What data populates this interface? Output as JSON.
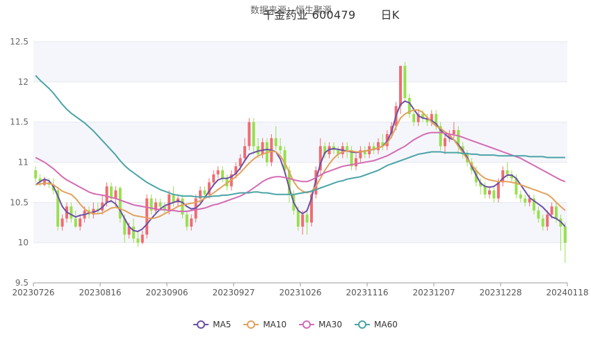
{
  "header": {
    "source_text": "数据来源：恒生聚源",
    "stock_title": "千金药业 600479",
    "period": "日K"
  },
  "colors": {
    "up": "#f06b72",
    "down": "#97e04e",
    "ma5": "#6b4fa5",
    "ma10": "#e3a05b",
    "ma30": "#d46ab3",
    "ma60": "#4aa3a6",
    "grid_band": "#f5f6fb"
  },
  "legend": [
    {
      "key": "ma5",
      "label": "MA5"
    },
    {
      "key": "ma10",
      "label": "MA10"
    },
    {
      "key": "ma30",
      "label": "MA30"
    },
    {
      "key": "ma60",
      "label": "MA60"
    }
  ],
  "chart_data": {
    "type": "candlestick",
    "ylim": [
      9.5,
      12.5
    ],
    "yticks": [
      9.5,
      10,
      10.5,
      11,
      11.5,
      12,
      12.5
    ],
    "xticks": [
      "20230726",
      "20230816",
      "20230906",
      "20230927",
      "20231026",
      "20231116",
      "20231207",
      "20231228",
      "20240118"
    ],
    "num_days": 120,
    "candles": [
      [
        10.9,
        10.8,
        10.95,
        10.75
      ],
      [
        10.8,
        10.75,
        10.85,
        10.7
      ],
      [
        10.72,
        10.78,
        10.82,
        10.7
      ],
      [
        10.75,
        10.72,
        10.8,
        10.68
      ],
      [
        10.72,
        10.65,
        10.8,
        10.6
      ],
      [
        10.65,
        10.2,
        10.7,
        10.15
      ],
      [
        10.2,
        10.3,
        10.35,
        10.15
      ],
      [
        10.3,
        10.45,
        10.5,
        10.25
      ],
      [
        10.45,
        10.3,
        10.5,
        10.25
      ],
      [
        10.3,
        10.2,
        10.4,
        10.18
      ],
      [
        10.2,
        10.3,
        10.35,
        10.15
      ],
      [
        10.3,
        10.4,
        10.45,
        10.25
      ],
      [
        10.4,
        10.35,
        10.45,
        10.3
      ],
      [
        10.35,
        10.42,
        10.5,
        10.3
      ],
      [
        10.42,
        10.4,
        10.5,
        10.35
      ],
      [
        10.4,
        10.5,
        10.6,
        10.35
      ],
      [
        10.5,
        10.7,
        10.75,
        10.45
      ],
      [
        10.7,
        10.55,
        10.75,
        10.5
      ],
      [
        10.55,
        10.65,
        10.7,
        10.45
      ],
      [
        10.68,
        10.3,
        10.7,
        10.25
      ],
      [
        10.3,
        10.1,
        10.35,
        10.0
      ],
      [
        10.1,
        10.2,
        10.25,
        10.05
      ],
      [
        10.2,
        10.05,
        10.3,
        10.0
      ],
      [
        10.05,
        10.0,
        10.15,
        9.95
      ],
      [
        10.0,
        10.1,
        10.15,
        9.98
      ],
      [
        10.1,
        10.55,
        10.6,
        10.05
      ],
      [
        10.55,
        10.4,
        10.6,
        10.35
      ],
      [
        10.4,
        10.5,
        10.55,
        10.35
      ],
      [
        10.5,
        10.45,
        10.55,
        10.4
      ],
      [
        10.45,
        10.4,
        10.5,
        10.35
      ],
      [
        10.4,
        10.6,
        10.65,
        10.35
      ],
      [
        10.6,
        10.5,
        10.7,
        10.45
      ],
      [
        10.5,
        10.55,
        10.6,
        10.45
      ],
      [
        10.55,
        10.35,
        10.6,
        10.3
      ],
      [
        10.35,
        10.2,
        10.4,
        10.15
      ],
      [
        10.2,
        10.3,
        10.35,
        10.15
      ],
      [
        10.3,
        10.55,
        10.6,
        10.25
      ],
      [
        10.55,
        10.65,
        10.7,
        10.5
      ],
      [
        10.65,
        10.6,
        10.7,
        10.55
      ],
      [
        10.6,
        10.75,
        10.8,
        10.55
      ],
      [
        10.75,
        10.85,
        10.9,
        10.7
      ],
      [
        10.85,
        10.9,
        10.95,
        10.8
      ],
      [
        10.9,
        10.8,
        10.95,
        10.75
      ],
      [
        10.8,
        10.7,
        10.85,
        10.65
      ],
      [
        10.7,
        10.85,
        10.9,
        10.65
      ],
      [
        10.85,
        10.95,
        11.0,
        10.8
      ],
      [
        10.95,
        11.05,
        11.1,
        10.9
      ],
      [
        11.05,
        11.2,
        11.3,
        11.0
      ],
      [
        11.2,
        11.5,
        11.55,
        11.15
      ],
      [
        11.5,
        11.2,
        11.55,
        11.1
      ],
      [
        11.2,
        11.1,
        11.3,
        11.05
      ],
      [
        11.1,
        11.25,
        11.3,
        11.05
      ],
      [
        11.25,
        11.0,
        11.3,
        10.95
      ],
      [
        11.0,
        11.3,
        11.35,
        10.95
      ],
      [
        11.3,
        11.2,
        11.45,
        11.15
      ],
      [
        11.2,
        11.15,
        11.3,
        11.1
      ],
      [
        11.15,
        10.9,
        11.2,
        10.85
      ],
      [
        10.9,
        10.6,
        10.95,
        10.5
      ],
      [
        10.6,
        10.4,
        10.65,
        10.35
      ],
      [
        10.4,
        10.2,
        10.45,
        10.15
      ],
      [
        10.2,
        10.35,
        10.4,
        10.1
      ],
      [
        10.35,
        10.25,
        10.4,
        10.1
      ],
      [
        10.25,
        10.6,
        10.65,
        10.2
      ],
      [
        10.6,
        10.9,
        10.95,
        10.55
      ],
      [
        10.9,
        11.2,
        11.3,
        10.85
      ],
      [
        11.2,
        11.1,
        11.25,
        11.05
      ],
      [
        11.1,
        11.2,
        11.25,
        11.05
      ],
      [
        11.2,
        11.15,
        11.25,
        11.1
      ],
      [
        11.15,
        11.1,
        11.2,
        11.05
      ],
      [
        11.1,
        11.2,
        11.25,
        11.05
      ],
      [
        11.2,
        11.15,
        11.25,
        11.05
      ],
      [
        11.15,
        10.95,
        11.2,
        10.9
      ],
      [
        10.95,
        11.05,
        11.1,
        10.9
      ],
      [
        11.05,
        11.15,
        11.2,
        11.0
      ],
      [
        11.15,
        11.1,
        11.2,
        11.05
      ],
      [
        11.1,
        11.2,
        11.25,
        11.05
      ],
      [
        11.2,
        11.15,
        11.25,
        11.1
      ],
      [
        11.15,
        11.25,
        11.3,
        11.1
      ],
      [
        11.25,
        11.2,
        11.35,
        11.15
      ],
      [
        11.2,
        11.35,
        11.4,
        11.15
      ],
      [
        11.35,
        11.45,
        11.5,
        11.3
      ],
      [
        11.45,
        11.7,
        11.75,
        11.4
      ],
      [
        11.7,
        12.2,
        12.2,
        11.6
      ],
      [
        12.2,
        11.8,
        12.25,
        11.75
      ],
      [
        11.8,
        11.6,
        11.85,
        11.55
      ],
      [
        11.6,
        11.5,
        11.65,
        11.45
      ],
      [
        11.5,
        11.6,
        11.65,
        11.45
      ],
      [
        11.6,
        11.55,
        11.65,
        11.5
      ],
      [
        11.55,
        11.5,
        11.6,
        11.45
      ],
      [
        11.5,
        11.6,
        11.65,
        11.45
      ],
      [
        11.6,
        11.45,
        11.65,
        11.4
      ],
      [
        11.45,
        11.2,
        11.5,
        11.15
      ],
      [
        11.2,
        11.3,
        11.35,
        11.1
      ],
      [
        11.3,
        11.35,
        11.4,
        11.25
      ],
      [
        11.35,
        11.4,
        11.5,
        11.3
      ],
      [
        11.4,
        11.2,
        11.45,
        11.1
      ],
      [
        11.2,
        11.1,
        11.25,
        11.05
      ],
      [
        11.1,
        11.0,
        11.15,
        10.95
      ],
      [
        11.0,
        10.9,
        11.05,
        10.85
      ],
      [
        10.9,
        10.75,
        10.95,
        10.7
      ],
      [
        10.75,
        10.7,
        10.8,
        10.6
      ],
      [
        10.7,
        10.6,
        10.75,
        10.55
      ],
      [
        10.6,
        10.65,
        10.7,
        10.55
      ],
      [
        10.65,
        10.55,
        10.7,
        10.5
      ],
      [
        10.55,
        10.75,
        10.8,
        10.5
      ],
      [
        10.75,
        10.9,
        10.95,
        10.7
      ],
      [
        10.9,
        10.85,
        11.0,
        10.8
      ],
      [
        10.85,
        10.8,
        10.9,
        10.75
      ],
      [
        10.8,
        10.6,
        10.85,
        10.55
      ],
      [
        10.6,
        10.55,
        10.65,
        10.5
      ],
      [
        10.55,
        10.5,
        10.6,
        10.45
      ],
      [
        10.5,
        10.55,
        10.6,
        10.45
      ],
      [
        10.55,
        10.4,
        10.6,
        10.35
      ],
      [
        10.4,
        10.3,
        10.45,
        10.25
      ],
      [
        10.3,
        10.2,
        10.35,
        10.15
      ],
      [
        10.2,
        10.35,
        10.4,
        10.15
      ],
      [
        10.35,
        10.45,
        10.5,
        10.3
      ],
      [
        10.45,
        10.3,
        10.5,
        10.25
      ],
      [
        10.3,
        10.2,
        10.35,
        9.9
      ],
      [
        10.2,
        10.0,
        10.25,
        9.75
      ]
    ],
    "series": [
      {
        "key": "ma5",
        "name": "MA5",
        "values": [
          10.72,
          10.76,
          10.79,
          10.77,
          10.7,
          10.58,
          10.45,
          10.38,
          10.35,
          10.32,
          10.34,
          10.35,
          10.37,
          10.38,
          10.4,
          10.44,
          10.5,
          10.52,
          10.48,
          10.4,
          10.3,
          10.2,
          10.15,
          10.14,
          10.17,
          10.23,
          10.3,
          10.36,
          10.42,
          10.46,
          10.48,
          10.5,
          10.52,
          10.5,
          10.45,
          10.42,
          10.43,
          10.48,
          10.56,
          10.64,
          10.72,
          10.78,
          10.8,
          10.8,
          10.82,
          10.86,
          10.93,
          11.02,
          11.1,
          11.12,
          11.14,
          11.15,
          11.16,
          11.15,
          11.13,
          11.04,
          10.88,
          10.68,
          10.5,
          10.4,
          10.36,
          10.4,
          10.55,
          10.78,
          10.98,
          11.12,
          11.16,
          11.17,
          11.16,
          11.15,
          11.14,
          11.13,
          11.12,
          11.13,
          11.14,
          11.15,
          11.16,
          11.18,
          11.2,
          11.26,
          11.38,
          11.58,
          11.72,
          11.76,
          11.74,
          11.66,
          11.58,
          11.55,
          11.54,
          11.52,
          11.48,
          11.4,
          11.35,
          11.3,
          11.28,
          11.22,
          11.15,
          11.06,
          10.95,
          10.84,
          10.74,
          10.7,
          10.69,
          10.7,
          10.74,
          10.8,
          10.84,
          10.84,
          10.8,
          10.72,
          10.64,
          10.56,
          10.52,
          10.48,
          10.44,
          10.38,
          10.32,
          10.3,
          10.26,
          10.2
        ]
      },
      {
        "key": "ma10",
        "name": "MA10",
        "values": [
          10.72,
          10.73,
          10.74,
          10.74,
          10.72,
          10.68,
          10.64,
          10.62,
          10.6,
          10.55,
          10.48,
          10.42,
          10.38,
          10.36,
          10.36,
          10.37,
          10.4,
          10.43,
          10.44,
          10.42,
          10.4,
          10.37,
          10.34,
          10.33,
          10.32,
          10.31,
          10.3,
          10.31,
          10.33,
          10.36,
          10.39,
          10.42,
          10.45,
          10.47,
          10.48,
          10.49,
          10.5,
          10.52,
          10.55,
          10.58,
          10.62,
          10.66,
          10.7,
          10.74,
          10.78,
          10.82,
          10.87,
          10.93,
          10.99,
          11.04,
          11.08,
          11.1,
          11.12,
          11.14,
          11.13,
          11.08,
          10.99,
          10.88,
          10.76,
          10.68,
          10.64,
          10.62,
          10.64,
          10.7,
          10.8,
          10.9,
          10.98,
          11.05,
          11.1,
          11.13,
          11.14,
          11.14,
          11.13,
          11.13,
          11.14,
          11.15,
          11.16,
          11.18,
          11.2,
          11.24,
          11.32,
          11.44,
          11.55,
          11.6,
          11.63,
          11.65,
          11.65,
          11.62,
          11.56,
          11.5,
          11.45,
          11.42,
          11.38,
          11.34,
          11.28,
          11.2,
          11.12,
          11.04,
          10.97,
          10.9,
          10.84,
          10.8,
          10.78,
          10.77,
          10.76,
          10.76,
          10.76,
          10.75,
          10.74,
          10.72,
          10.7,
          10.68,
          10.66,
          10.64,
          10.62,
          10.6,
          10.56,
          10.5,
          10.45,
          10.4
        ]
      },
      {
        "key": "ma30",
        "name": "MA30",
        "values": [
          11.06,
          11.03,
          11.0,
          10.96,
          10.92,
          10.87,
          10.82,
          10.78,
          10.75,
          10.72,
          10.69,
          10.66,
          10.63,
          10.61,
          10.6,
          10.59,
          10.58,
          10.56,
          10.55,
          10.53,
          10.51,
          10.49,
          10.47,
          10.46,
          10.45,
          10.44,
          10.43,
          10.42,
          10.41,
          10.41,
          10.4,
          10.4,
          10.39,
          10.39,
          10.39,
          10.4,
          10.41,
          10.42,
          10.43,
          10.45,
          10.47,
          10.48,
          10.5,
          10.52,
          10.54,
          10.56,
          10.58,
          10.61,
          10.64,
          10.68,
          10.72,
          10.76,
          10.79,
          10.81,
          10.82,
          10.82,
          10.81,
          10.8,
          10.78,
          10.77,
          10.76,
          10.76,
          10.78,
          10.81,
          10.84,
          10.87,
          10.89,
          10.91,
          10.93,
          10.95,
          10.96,
          10.97,
          10.98,
          10.99,
          11.0,
          11.01,
          11.02,
          11.04,
          11.06,
          11.08,
          11.11,
          11.14,
          11.17,
          11.2,
          11.24,
          11.28,
          11.31,
          11.34,
          11.36,
          11.37,
          11.37,
          11.37,
          11.36,
          11.35,
          11.34,
          11.33,
          11.31,
          11.29,
          11.27,
          11.25,
          11.23,
          11.21,
          11.19,
          11.17,
          11.15,
          11.13,
          11.11,
          11.09,
          11.07,
          11.05,
          11.02,
          10.99,
          10.96,
          10.93,
          10.9,
          10.87,
          10.84,
          10.81,
          10.78,
          10.76
        ]
      },
      {
        "key": "ma60",
        "name": "MA60",
        "values": [
          12.08,
          12.02,
          11.97,
          11.92,
          11.86,
          11.79,
          11.72,
          11.66,
          11.61,
          11.57,
          11.53,
          11.49,
          11.44,
          11.39,
          11.33,
          11.27,
          11.21,
          11.15,
          11.09,
          11.02,
          10.96,
          10.91,
          10.87,
          10.83,
          10.79,
          10.75,
          10.72,
          10.69,
          10.66,
          10.64,
          10.62,
          10.6,
          10.59,
          10.58,
          10.58,
          10.58,
          10.57,
          10.57,
          10.57,
          10.57,
          10.58,
          10.58,
          10.59,
          10.59,
          10.6,
          10.61,
          10.62,
          10.62,
          10.62,
          10.63,
          10.63,
          10.62,
          10.62,
          10.61,
          10.6,
          10.6,
          10.6,
          10.6,
          10.6,
          10.61,
          10.62,
          10.63,
          10.64,
          10.66,
          10.68,
          10.7,
          10.72,
          10.74,
          10.76,
          10.77,
          10.79,
          10.8,
          10.81,
          10.82,
          10.84,
          10.86,
          10.88,
          10.9,
          10.93,
          10.96,
          10.98,
          11.0,
          11.02,
          11.04,
          11.06,
          11.08,
          11.1,
          11.11,
          11.12,
          11.13,
          11.13,
          11.13,
          11.12,
          11.12,
          11.12,
          11.12,
          11.11,
          11.11,
          11.1,
          11.1,
          11.09,
          11.09,
          11.09,
          11.09,
          11.08,
          11.08,
          11.08,
          11.08,
          11.08,
          11.08,
          11.08,
          11.07,
          11.07,
          11.07,
          11.07,
          11.06,
          11.06,
          11.06,
          11.06,
          11.06
        ]
      }
    ]
  }
}
